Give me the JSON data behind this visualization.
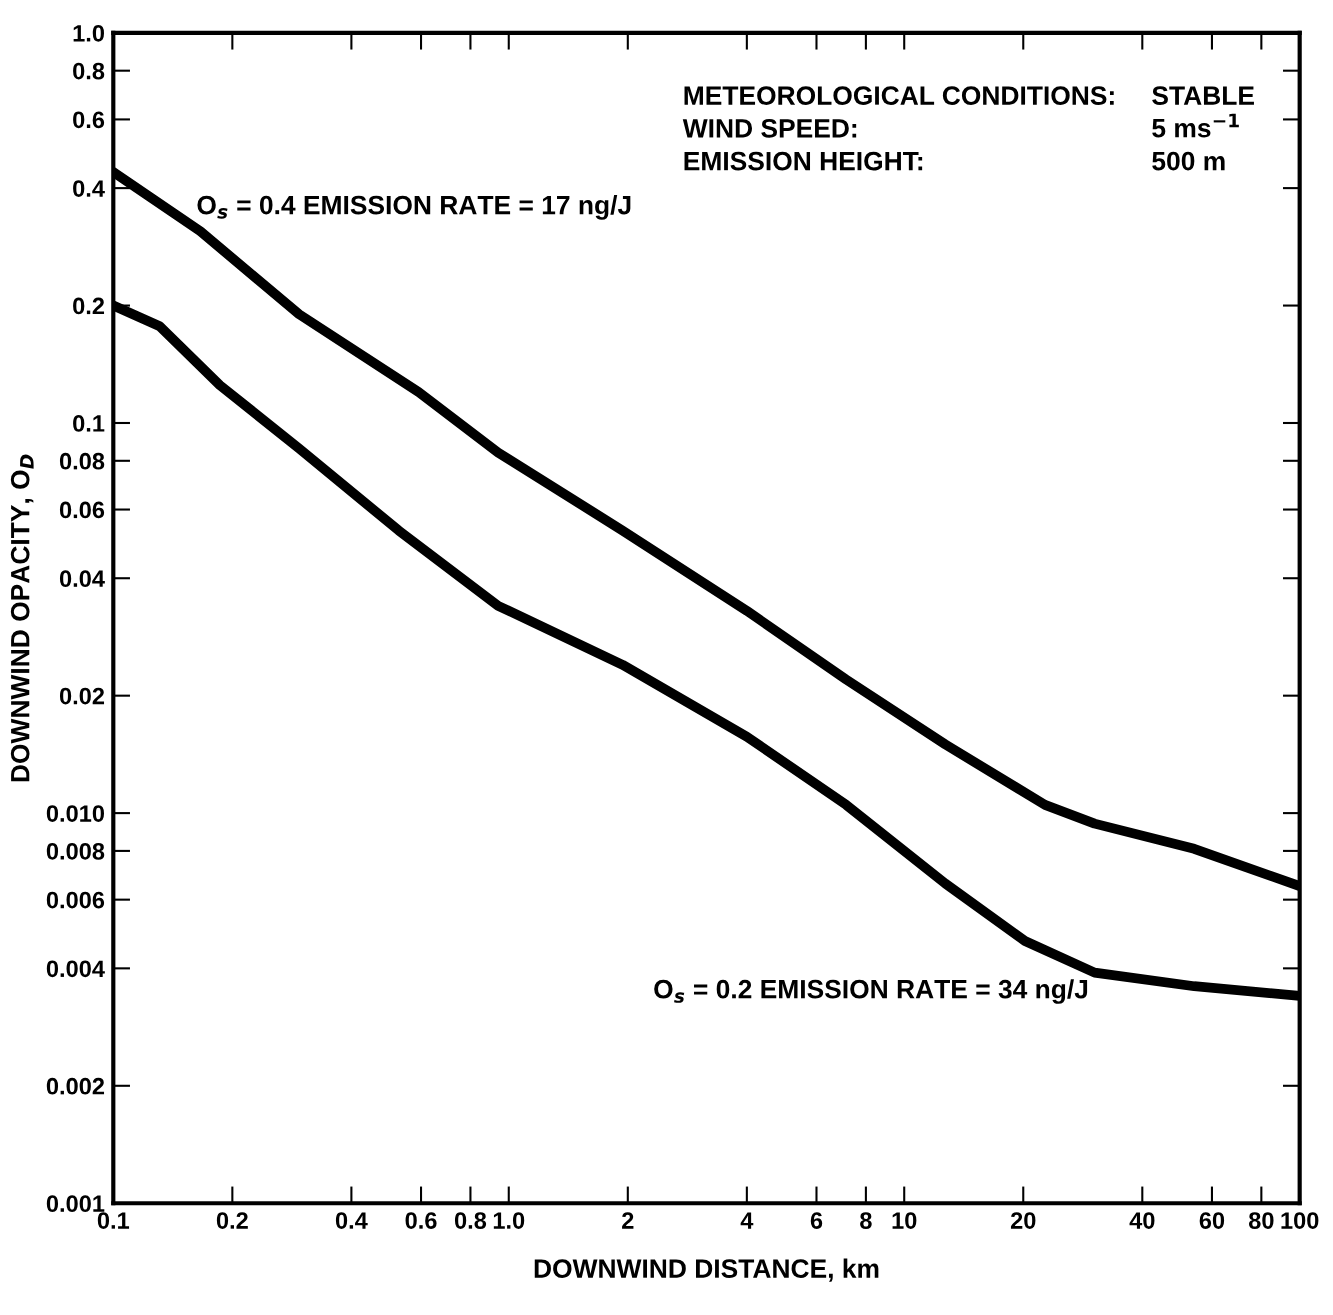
{
  "chart_data": {
    "type": "line",
    "xlabel": "DOWNWIND DISTANCE, km",
    "ylabel": "DOWNWIND OPACITY, O$_{D}$",
    "log": "xy",
    "grid": false,
    "legend": false,
    "marker": "none",
    "line_style": "solid",
    "xlim": [
      0.1,
      100
    ],
    "ylim": [
      0.001,
      1.0
    ],
    "xticks": [
      {
        "value": 0.1,
        "label": "0.1"
      },
      0.2,
      0.4,
      0.6,
      0.8,
      {
        "value": 1.0,
        "label": "1.0"
      },
      2,
      4,
      6,
      8,
      10,
      20,
      40,
      60,
      80,
      100
    ],
    "yticks": [
      0.001,
      0.002,
      0.004,
      0.006,
      0.008,
      {
        "value": 0.01,
        "label": "0.010"
      },
      0.02,
      0.04,
      0.06,
      0.08,
      0.1,
      0.2,
      0.4,
      0.6,
      0.8,
      {
        "value": 1.0,
        "label": "1.0"
      }
    ],
    "series": [
      {
        "name": "O$_{s}$ = 0.4 EMISSION RATE = 17 ng/J",
        "color": "#000000",
        "x": [
          0.1,
          0.166,
          0.295,
          0.592,
          0.94,
          1.94,
          4.0,
          7.13,
          12.7,
          22.7,
          30.3,
          54.1,
          100
        ],
        "values": [
          0.44,
          0.31,
          0.19,
          0.12,
          0.084,
          0.053,
          0.033,
          0.022,
          0.015,
          0.0105,
          0.0094,
          0.0081,
          0.0065
        ]
      },
      {
        "name": "O$_{s}$ = 0.2 EMISSION RATE = 34 ng/J",
        "color": "#000000",
        "x": [
          0.1,
          0.131,
          0.186,
          0.295,
          0.527,
          0.94,
          1.94,
          4.0,
          7.13,
          12.7,
          20.2,
          30.3,
          54.1,
          100
        ],
        "values": [
          0.2,
          0.177,
          0.125,
          0.086,
          0.053,
          0.034,
          0.024,
          0.0157,
          0.0105,
          0.0066,
          0.0047,
          0.0039,
          0.0036,
          0.0034
        ]
      }
    ],
    "annotations": [
      "METEOROLOGICAL CONDITIONS:",
      "STABLE",
      "WIND SPEED:",
      "5 ms$^{−1}$",
      "EMISSION HEIGHT:",
      "500 m"
    ]
  }
}
